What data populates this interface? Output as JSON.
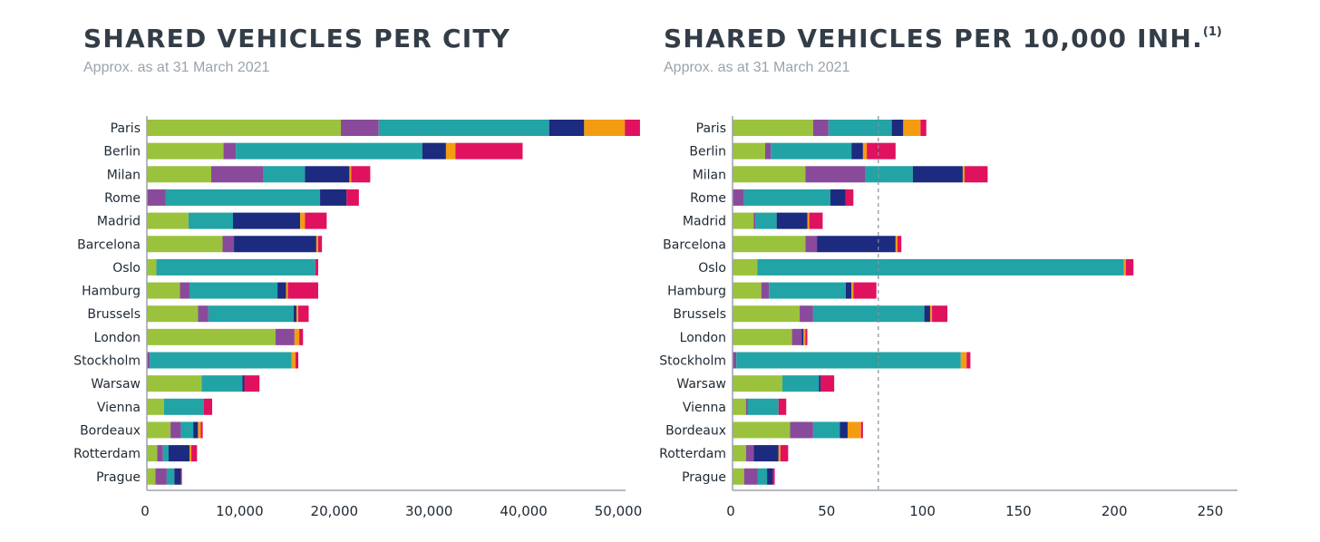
{
  "colors": {
    "series": [
      "#9bc23c",
      "#8a4a9b",
      "#22a3a6",
      "#1c2a7f",
      "#f39c12",
      "#e0115f"
    ],
    "axis": "#9aa3ab",
    "reference_line": "#8a8f94"
  },
  "chart_data": [
    {
      "type": "bar",
      "orientation": "horizontal",
      "stacked": true,
      "title": "SHARED VEHICLES PER CITY",
      "title_superscript": "",
      "subtitle": "Approx. as at 31 March 2021",
      "categories": [
        "Paris",
        "Berlin",
        "Milan",
        "Rome",
        "Madrid",
        "Barcelona",
        "Oslo",
        "Hamburg",
        "Brussels",
        "London",
        "Stockholm",
        "Warsaw",
        "Vienna",
        "Bordeaux",
        "Rotterdam",
        "Prague"
      ],
      "series": [
        {
          "values": [
            20500,
            8100,
            6800,
            0,
            4400,
            8000,
            1000,
            3500,
            5400,
            13600,
            0,
            5800,
            1800,
            2500,
            1100,
            900
          ]
        },
        {
          "values": [
            4000,
            1300,
            5500,
            2000,
            0,
            1200,
            0,
            1000,
            1100,
            2000,
            300,
            0,
            0,
            1100,
            600,
            1200
          ]
        },
        {
          "values": [
            18000,
            19700,
            4400,
            16300,
            4700,
            0,
            16800,
            9300,
            9000,
            0,
            15000,
            4300,
            4200,
            1300,
            600,
            800
          ]
        },
        {
          "values": [
            3700,
            2500,
            4700,
            2800,
            7100,
            8700,
            0,
            900,
            300,
            0,
            0,
            200,
            0,
            500,
            2200,
            700
          ]
        },
        {
          "values": [
            4300,
            1000,
            200,
            0,
            500,
            200,
            0,
            200,
            200,
            500,
            400,
            0,
            0,
            300,
            200,
            0
          ]
        },
        {
          "values": [
            1600,
            7100,
            2000,
            1300,
            2300,
            400,
            300,
            3200,
            1100,
            400,
            300,
            1600,
            900,
            200,
            600,
            100
          ]
        }
      ],
      "xlim": [
        0,
        50000
      ],
      "xticks": [
        0,
        10000,
        20000,
        30000,
        40000,
        50000
      ],
      "xtick_labels": [
        "0",
        "10,000",
        "20,000",
        "30,000",
        "40,000",
        "50,000"
      ],
      "xlabel": "",
      "ylabel": "",
      "grid": false,
      "legend": "none"
    },
    {
      "type": "bar",
      "orientation": "horizontal",
      "stacked": true,
      "title": "SHARED VEHICLES PER 10,000 INH.",
      "title_superscript": "(1)",
      "subtitle": "Approx. as at 31 March 2021",
      "categories": [
        "Paris",
        "Berlin",
        "Milan",
        "Rome",
        "Madrid",
        "Barcelona",
        "Oslo",
        "Hamburg",
        "Brussels",
        "London",
        "Stockholm",
        "Warsaw",
        "Vienna",
        "Bordeaux",
        "Rotterdam",
        "Prague"
      ],
      "series": [
        {
          "values": [
            42,
            17,
            38,
            0,
            11,
            38,
            13,
            15,
            35,
            31,
            0,
            26,
            7,
            30,
            7,
            6
          ]
        },
        {
          "values": [
            8,
            3,
            31,
            6,
            1,
            6,
            0,
            4,
            7,
            5,
            2,
            0,
            1,
            12,
            4,
            7
          ]
        },
        {
          "values": [
            33,
            42,
            25,
            45,
            11,
            0,
            191,
            40,
            58,
            0,
            117,
            19,
            16,
            14,
            0,
            5
          ]
        },
        {
          "values": [
            6,
            6,
            26,
            8,
            16,
            41,
            0,
            3,
            3,
            1,
            0,
            1,
            0,
            4,
            13,
            3
          ]
        },
        {
          "values": [
            9,
            2,
            1,
            0,
            1,
            1,
            1,
            1,
            1,
            1,
            3,
            0,
            0,
            7,
            1,
            0
          ]
        },
        {
          "values": [
            3,
            15,
            12,
            4,
            7,
            2,
            4,
            12,
            8,
            1,
            2,
            7,
            4,
            1,
            4,
            1
          ]
        }
      ],
      "reference_line": 76,
      "xlim": [
        0,
        250
      ],
      "xticks": [
        0,
        50,
        100,
        150,
        200,
        250
      ],
      "xtick_labels": [
        "0",
        "50",
        "100",
        "150",
        "200",
        "250"
      ],
      "xlabel": "",
      "ylabel": "",
      "grid": false,
      "legend": "none"
    }
  ]
}
